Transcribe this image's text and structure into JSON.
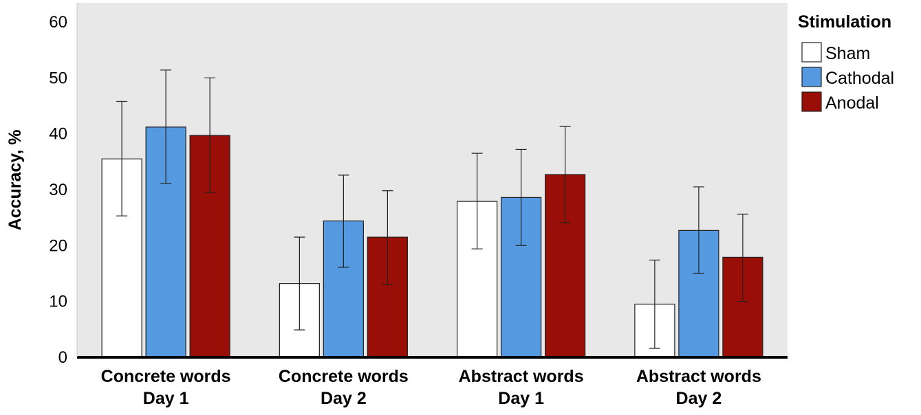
{
  "chart_data": {
    "type": "bar",
    "categories": [
      [
        "Concrete words",
        "Day 1"
      ],
      [
        "Concrete words",
        "Day 2"
      ],
      [
        "Abstract words",
        "Day 1"
      ],
      [
        "Abstract words",
        "Day 2"
      ]
    ],
    "series": [
      {
        "name": "Sham",
        "color": "#ffffff",
        "values": [
          35.5,
          13.2,
          27.9,
          9.5
        ],
        "error_low": [
          25.3,
          4.9,
          19.4,
          1.6
        ],
        "error_high": [
          45.8,
          21.5,
          36.5,
          17.4
        ]
      },
      {
        "name": "Cathodal",
        "color": "#5599e0",
        "values": [
          41.2,
          24.4,
          28.6,
          22.7
        ],
        "error_low": [
          31.1,
          16.1,
          20.0,
          15.0
        ],
        "error_high": [
          51.4,
          32.6,
          37.2,
          30.5
        ]
      },
      {
        "name": "Anodal",
        "color": "#990f08",
        "values": [
          39.7,
          21.5,
          32.7,
          17.9
        ],
        "error_low": [
          29.5,
          13.0,
          24.1,
          10.0
        ],
        "error_high": [
          50.0,
          29.8,
          41.3,
          25.6
        ]
      }
    ],
    "ylabel": "Accuracy, %",
    "ylim": [
      0,
      60
    ],
    "yticks": [
      0,
      10,
      20,
      30,
      40,
      50,
      60
    ],
    "legend_title": "Stimulation",
    "legend_position": "top-right",
    "grid": false
  }
}
